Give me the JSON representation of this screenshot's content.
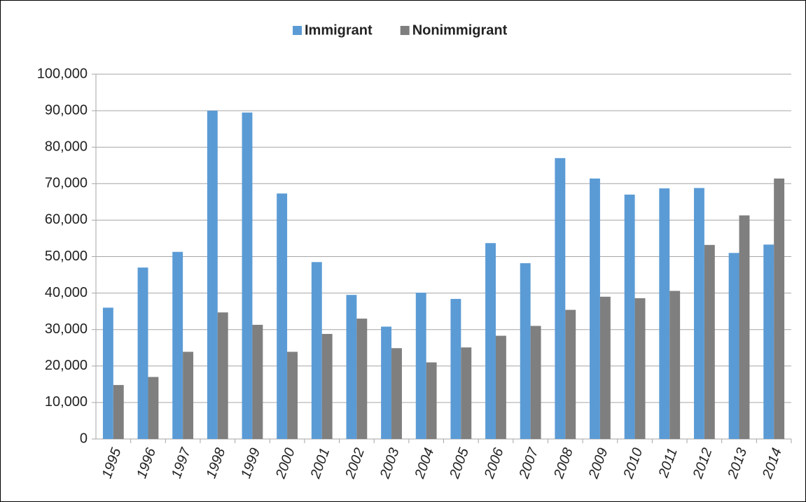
{
  "chart_data": {
    "type": "bar",
    "categories": [
      "1995",
      "1996",
      "1997",
      "1998",
      "1999",
      "2000",
      "2001",
      "2002",
      "2003",
      "2004",
      "2005",
      "2006",
      "2007",
      "2008",
      "2009",
      "2010",
      "2011",
      "2012",
      "2013",
      "2014"
    ],
    "series": [
      {
        "name": "Immigrant",
        "color": "#5b9bd5",
        "values": [
          36000,
          47000,
          51300,
          90000,
          89500,
          67300,
          48500,
          39500,
          30800,
          40100,
          38400,
          53700,
          48200,
          77000,
          71400,
          67000,
          68700,
          68800,
          51000,
          53300
        ]
      },
      {
        "name": "Nonimmigrant",
        "color": "#7f7f7f",
        "values": [
          14800,
          17000,
          23900,
          34700,
          31300,
          23900,
          28800,
          33000,
          24900,
          21000,
          25100,
          28300,
          31000,
          35400,
          39000,
          38600,
          40600,
          53200,
          61300,
          71400
        ]
      }
    ],
    "ylim": [
      0,
      100000
    ],
    "yticks": [
      0,
      {
        "value": 10000,
        "label": "10,000"
      },
      {
        "value": 20000,
        "label": "20,000"
      },
      {
        "value": 30000,
        "label": "30,000"
      },
      {
        "value": 40000,
        "label": "40,000"
      },
      {
        "value": 50000,
        "label": "50,000"
      },
      {
        "value": 60000,
        "label": "60,000"
      },
      {
        "value": 70000,
        "label": "70,000"
      },
      {
        "value": 80000,
        "label": "80,000"
      },
      {
        "value": 90000,
        "label": "90,000"
      },
      {
        "value": 100000,
        "label": "100,000"
      }
    ],
    "grid": true,
    "legend": "top"
  }
}
